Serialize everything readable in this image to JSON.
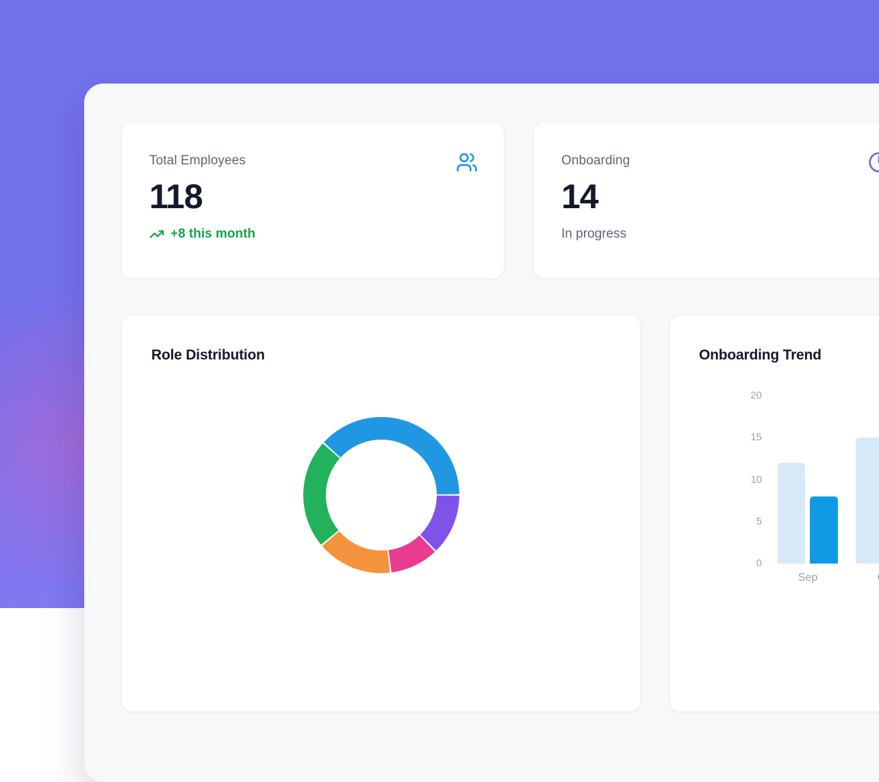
{
  "theme": {
    "background_purple": "#7471ed",
    "background_pink_glow": "#db5fba",
    "panel_background": "#f7f8fa",
    "card_background": "#ffffff",
    "heading_text": "#131b2c",
    "muted_text": "#5d6573",
    "axis_text": "#9ca3af"
  },
  "stats": [
    {
      "label": "Total Employees",
      "value": "118",
      "trend": "+8 this month",
      "trend_color": "#16a34a",
      "icon": "users-icon",
      "icon_color": "#1e95e6"
    },
    {
      "label": "Onboarding",
      "value": "14",
      "subtitle": "In progress",
      "icon": "clock-icon",
      "icon_color": "#6b68f0"
    }
  ],
  "chart_data": [
    {
      "type": "pie",
      "title": "Role Distribution",
      "donut": true,
      "legend": "none",
      "start_angle_deg": -48,
      "segments": [
        {
          "name": "blue-segment",
          "color": "#2097e2",
          "percent": 38.3
        },
        {
          "name": "purple-segment",
          "color": "#8152e9",
          "percent": 12.8
        },
        {
          "name": "pink-segment",
          "color": "#ea3b92",
          "percent": 10.3
        },
        {
          "name": "orange-segment",
          "color": "#f6933d",
          "percent": 15.8
        },
        {
          "name": "green-segment",
          "color": "#21b25b",
          "percent": 22.8
        }
      ]
    },
    {
      "type": "bar",
      "title": "Onboarding Trend",
      "categories": [
        "Sep",
        "Oct"
      ],
      "series": [
        {
          "name": "light-blue-series",
          "color": "#d6e9f8",
          "values": [
            12,
            15
          ]
        },
        {
          "name": "dark-blue-series",
          "color": "#0f9be3",
          "values": [
            8,
            null
          ]
        }
      ],
      "ylim": [
        0,
        20
      ],
      "yticks": [
        0,
        5,
        10,
        15,
        20
      ],
      "grid": false,
      "legend": "none",
      "xlabel": "",
      "ylabel": ""
    }
  ]
}
